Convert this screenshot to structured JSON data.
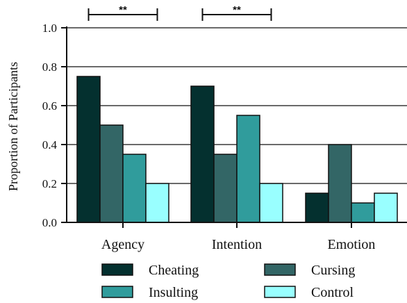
{
  "chart_data": {
    "type": "bar",
    "title": "",
    "xlabel": "",
    "ylabel": "Proportion of Participants",
    "ylim": [
      0,
      1.0
    ],
    "yticks": [
      "0.0",
      "0.2",
      "0.4",
      "0.6",
      "0.8",
      "1.0"
    ],
    "grid": true,
    "legend_position": "bottom",
    "categories": [
      "Agency",
      "Intention",
      "Emotion"
    ],
    "series": [
      {
        "name": "Cheating",
        "color": "#04302f",
        "values": [
          0.75,
          0.7,
          0.15
        ]
      },
      {
        "name": "Cursing",
        "color": "#336666",
        "values": [
          0.5,
          0.35,
          0.4
        ]
      },
      {
        "name": "Insulting",
        "color": "#309c9c",
        "values": [
          0.35,
          0.55,
          0.1
        ]
      },
      {
        "name": "Control",
        "color": "#99ffff",
        "values": [
          0.2,
          0.2,
          0.15
        ]
      }
    ],
    "annotations": [
      {
        "text": "**",
        "category": "Agency",
        "from_series": "Cheating",
        "to_series": "Control"
      },
      {
        "text": "**",
        "category": "Intention",
        "from_series": "Cheating",
        "to_series": "Control"
      }
    ]
  }
}
